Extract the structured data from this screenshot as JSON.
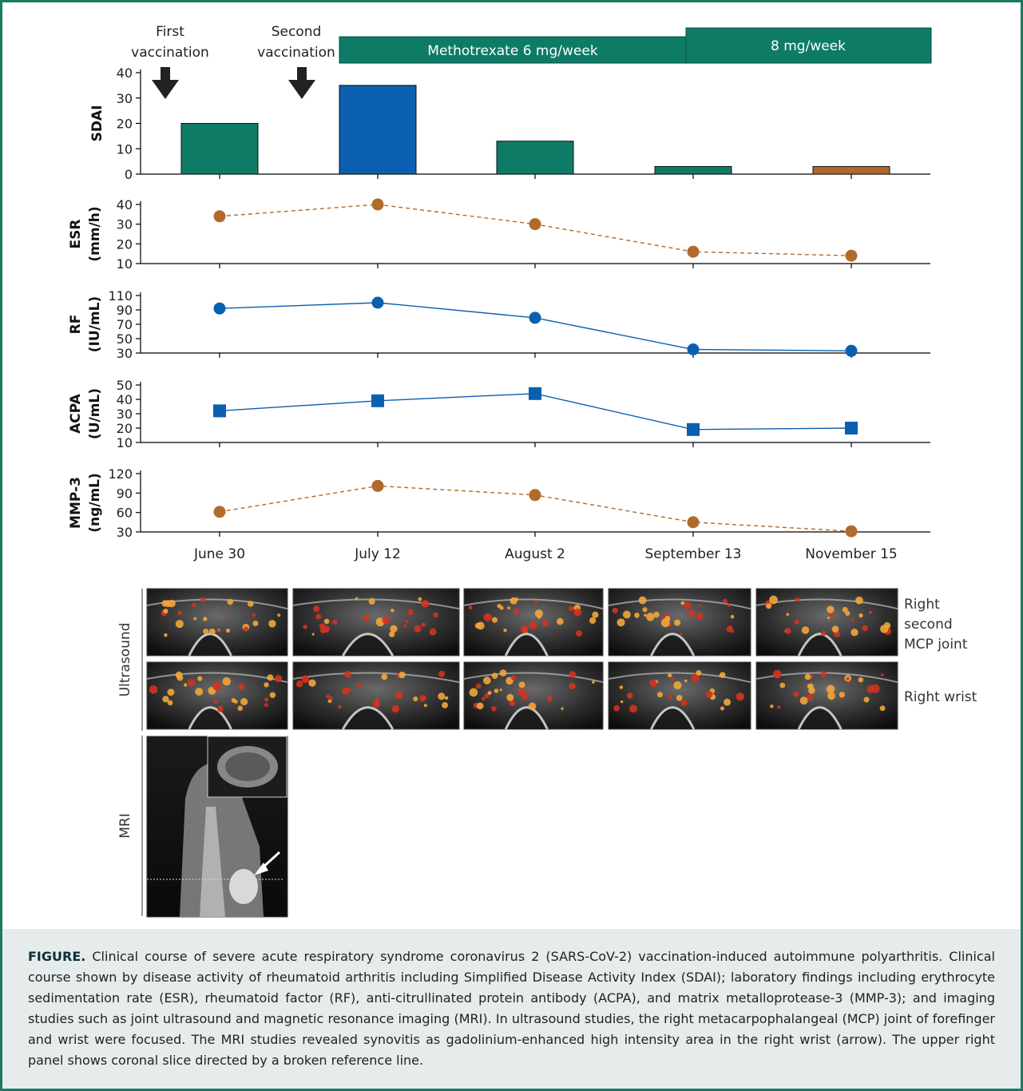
{
  "colors": {
    "green": "#0e7b67",
    "blue": "#0b5fb0",
    "brown": "#b06a2c",
    "frame": "#1a7a63",
    "caption_bg": "#e6ecec"
  },
  "annotations": {
    "first_vaccination": [
      "First",
      "vaccination"
    ],
    "second_vaccination": [
      "Second",
      "vaccination"
    ],
    "treatment_1": "Methotrexate 6 mg/week",
    "treatment_2": "8 mg/week"
  },
  "chart_data": [
    {
      "type": "bar",
      "ylabel": "SDAI",
      "categories": [
        "June 30",
        "July 12",
        "August 2",
        "September 13",
        "November 15"
      ],
      "values": [
        20,
        35,
        13,
        3,
        3
      ],
      "bar_colors": [
        "#0e7b67",
        "#0b5fb0",
        "#0e7b67",
        "#0e7b67",
        "#b06a2c"
      ],
      "ylim": [
        0,
        40
      ],
      "yticks": [
        0,
        10,
        20,
        30,
        40
      ]
    },
    {
      "type": "line",
      "ylabel": [
        "ESR",
        "(mm/h)"
      ],
      "x": [
        "June 30",
        "July 12",
        "August 2",
        "September 13",
        "November 15"
      ],
      "values": [
        34,
        40,
        30,
        16,
        14
      ],
      "marker": "circle",
      "line_style": "dashed",
      "color": "#b06a2c",
      "ylim": [
        10,
        40
      ],
      "yticks": [
        10,
        20,
        30,
        40
      ]
    },
    {
      "type": "line",
      "ylabel": [
        "RF",
        "(IU/mL)"
      ],
      "x": [
        "June 30",
        "July 12",
        "August 2",
        "September 13",
        "November 15"
      ],
      "values": [
        92,
        100,
        79,
        35,
        33
      ],
      "marker": "circle",
      "line_style": "solid",
      "color": "#0b5fb0",
      "ylim": [
        30,
        110
      ],
      "yticks": [
        30,
        50,
        70,
        90,
        110
      ]
    },
    {
      "type": "line",
      "ylabel": [
        "ACPA",
        "(U/mL)"
      ],
      "x": [
        "June 30",
        "July 12",
        "August 2",
        "September 13",
        "November 15"
      ],
      "values": [
        32,
        39,
        44,
        19,
        20
      ],
      "marker": "square",
      "line_style": "solid",
      "color": "#0b5fb0",
      "ylim": [
        10,
        50
      ],
      "yticks": [
        10,
        20,
        30,
        40,
        50
      ]
    },
    {
      "type": "line",
      "ylabel": [
        "MMP-3",
        "(ng/mL)"
      ],
      "x": [
        "June 30",
        "July 12",
        "August 2",
        "September 13",
        "November 15"
      ],
      "values": [
        61,
        101,
        87,
        45,
        31
      ],
      "marker": "circle",
      "line_style": "dashed",
      "color": "#b06a2c",
      "ylim": [
        30,
        120
      ],
      "yticks": [
        30,
        60,
        90,
        120
      ]
    }
  ],
  "imaging": {
    "ultrasound_label": "Ultrasound",
    "mri_label": "MRI",
    "row_labels": [
      [
        "Right",
        "second",
        "MCP joint"
      ],
      [
        "Right wrist"
      ]
    ]
  },
  "caption": {
    "head": "FIGURE.",
    "text": "Clinical course of severe acute respiratory syndrome coronavirus 2 (SARS-CoV-2) vaccination-induced autoimmune polyarthritis. Clinical course shown by disease activity of rheumatoid arthritis including Simplified Disease Activity Index (SDAI); laboratory findings including erythrocyte sedimentation rate (ESR), rheumatoid factor (RF), anti-citrullinated protein antibody (ACPA), and matrix metalloprotease-3 (MMP-3); and imaging studies such as joint ultrasound and magnetic resonance imaging (MRI). In ultrasound studies, the right metacarpophalangeal (MCP) joint of forefinger and wrist were focused. The MRI studies revealed synovitis as gadolinium-enhanced high intensity area in the right wrist (arrow). The upper right panel shows coronal slice directed by a broken reference line."
  }
}
